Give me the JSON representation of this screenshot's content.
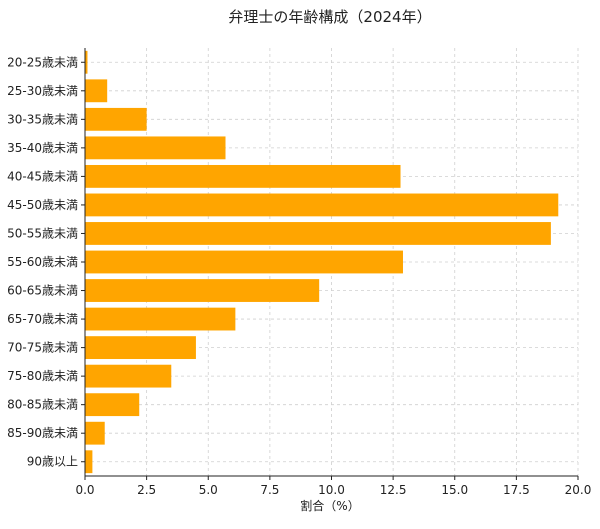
{
  "chart_data": {
    "type": "bar",
    "orientation": "horizontal",
    "title": "弁理士の年齢構成（2024年）",
    "xlabel": "割合（%）",
    "ylabel": "",
    "categories": [
      "20-25歳未満",
      "25-30歳未満",
      "30-35歳未満",
      "35-40歳未満",
      "40-45歳未満",
      "45-50歳未満",
      "50-55歳未満",
      "55-60歳未満",
      "60-65歳未満",
      "65-70歳未満",
      "70-75歳未満",
      "75-80歳未満",
      "80-85歳未満",
      "85-90歳未満",
      "90歳以上"
    ],
    "values": [
      0.1,
      0.9,
      2.5,
      5.7,
      12.8,
      19.2,
      18.9,
      12.9,
      9.5,
      6.1,
      4.5,
      3.5,
      2.2,
      0.8,
      0.3
    ],
    "xlim": [
      0,
      20
    ],
    "xticks": [
      0,
      2.5,
      5,
      7.5,
      10,
      12.5,
      15,
      17.5,
      20
    ],
    "xtick_labels": [
      "0.0",
      "2.5",
      "5.0",
      "7.5",
      "10.0",
      "12.5",
      "15.0",
      "17.5",
      "20.0"
    ],
    "bar_color": "#FFA500",
    "grid": true
  }
}
